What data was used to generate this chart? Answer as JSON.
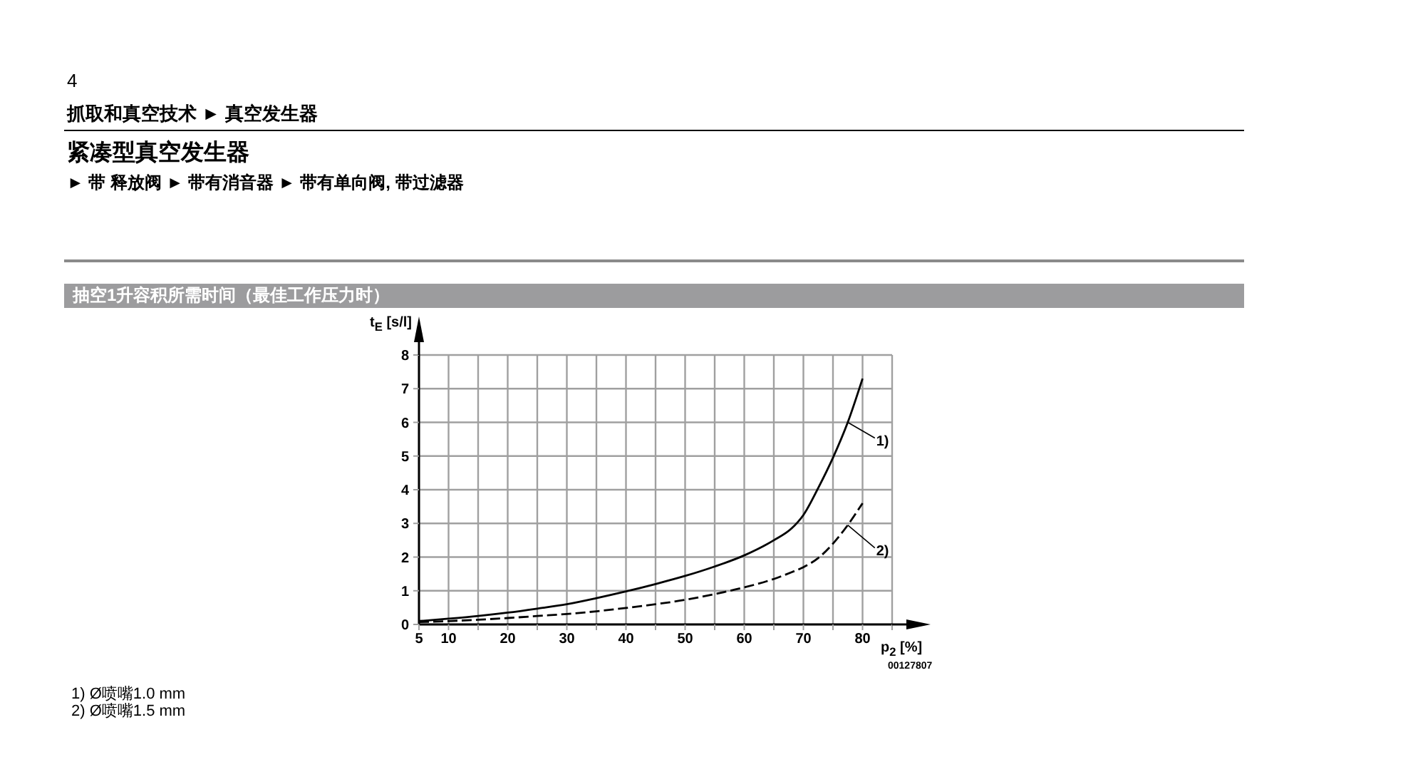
{
  "chart_data": {
    "type": "line",
    "title": "抽空1升容积所需时间（最佳工作压力时）",
    "xlabel": "p$_{2}$ [%]",
    "ylabel": "t$_{E}$ [s/l]",
    "annotations": [
      "4",
      "抓取和真空技术 ► 真空发生器",
      "紧凑型真空发生器",
      "► 带 释放阀 ► 带有消音器 ► 带有单向阀, 带过滤器",
      "00127807",
      "1) Ø喷嘴1.0 mm",
      "2) Ø喷嘴1.5 mm"
    ],
    "x": [
      5,
      10,
      15,
      20,
      25,
      30,
      35,
      40,
      45,
      50,
      55,
      60,
      65,
      68,
      70,
      72.5,
      75,
      77.5,
      80
    ],
    "series": [
      {
        "name": "1)",
        "color": "#000000",
        "line_style": "solid",
        "values": [
          0.1,
          0.17,
          0.25,
          0.35,
          0.47,
          0.6,
          0.78,
          0.98,
          1.2,
          1.44,
          1.72,
          2.05,
          2.5,
          2.85,
          3.25,
          4.05,
          4.95,
          6.0,
          7.3
        ]
      },
      {
        "name": "2)",
        "color": "#000000",
        "line_style": "dashed",
        "values": [
          0.07,
          0.1,
          0.14,
          0.19,
          0.25,
          0.31,
          0.39,
          0.49,
          0.6,
          0.73,
          0.9,
          1.1,
          1.35,
          1.55,
          1.7,
          1.97,
          2.4,
          2.95,
          3.6
        ]
      }
    ],
    "xlim": [
      5,
      85
    ],
    "xticks": [
      5,
      10,
      {
        "value": 15,
        "label": null
      },
      20,
      {
        "value": 25,
        "label": null
      },
      30,
      {
        "value": 35,
        "label": null
      },
      40,
      {
        "value": 45,
        "label": null
      },
      50,
      {
        "value": 55,
        "label": null
      },
      60,
      {
        "value": 65,
        "label": null
      },
      70,
      {
        "value": 75,
        "label": null
      },
      80,
      {
        "value": 85,
        "label": null
      }
    ],
    "ylim": [
      0,
      8
    ],
    "yticks": [
      0,
      1,
      2,
      3,
      4,
      5,
      6,
      7,
      8
    ],
    "grid": true,
    "legend": false,
    "marker": "none"
  }
}
